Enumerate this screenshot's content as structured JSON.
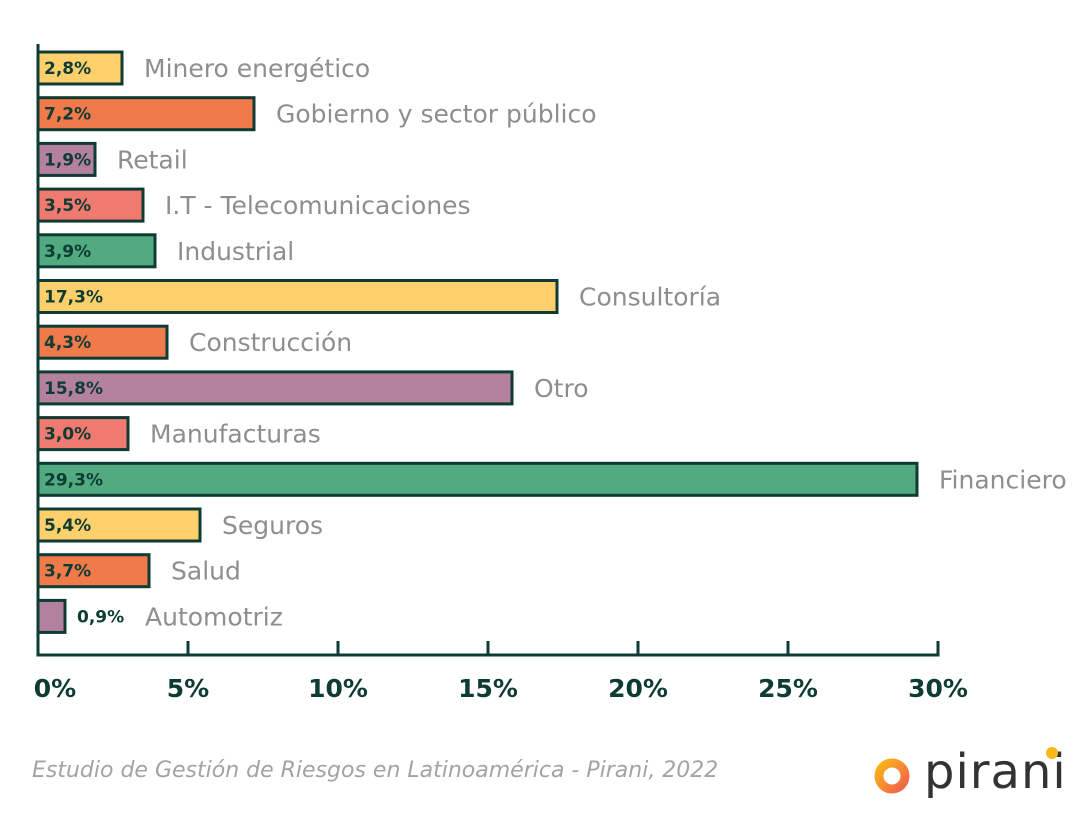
{
  "chart_data": {
    "type": "bar",
    "orientation": "horizontal",
    "title": "",
    "xlabel": "",
    "ylabel": "",
    "xlim": [
      0,
      30
    ],
    "x_ticks": [
      0,
      5,
      10,
      15,
      20,
      25,
      30
    ],
    "x_tick_labels": [
      "0%",
      "5%",
      "10%",
      "15%",
      "20%",
      "25%",
      "30%"
    ],
    "grid": false,
    "legend": "none",
    "categories": [
      "Minero energético",
      "Gobierno y sector público",
      "Retail",
      "I.T - Telecomunicaciones",
      "Industrial",
      "Consultoría",
      "Construcción",
      "Otro",
      "Manufacturas",
      "Financiero",
      "Seguros",
      "Salud",
      "Automotriz"
    ],
    "values": [
      2.8,
      7.2,
      1.9,
      3.5,
      3.9,
      17.3,
      4.3,
      15.8,
      3.0,
      29.3,
      5.4,
      3.7,
      0.9
    ],
    "value_labels": [
      "2,8%",
      "7,2%",
      "1,9%",
      "3,5%",
      "3,9%",
      "17,3%",
      "4,3%",
      "15,8%",
      "3,0%",
      "29,3%",
      "5,4%",
      "3,7%",
      "0,9%"
    ],
    "colors": [
      "#fdd06b",
      "#f07a4a",
      "#b3809e",
      "#f07a70",
      "#52ab80",
      "#fdd06b",
      "#f07a4a",
      "#b3809e",
      "#f07a70",
      "#52ab80",
      "#fdd06b",
      "#f07a4a",
      "#b3809e"
    ],
    "outline_color": "#0e3b33"
  },
  "caption": "Estudio de Gestión de Riesgos en Latinoamérica - Pirani, 2022",
  "logo": {
    "text": "pirani",
    "accent_colors": [
      "#fbb617",
      "#f0604d"
    ]
  }
}
